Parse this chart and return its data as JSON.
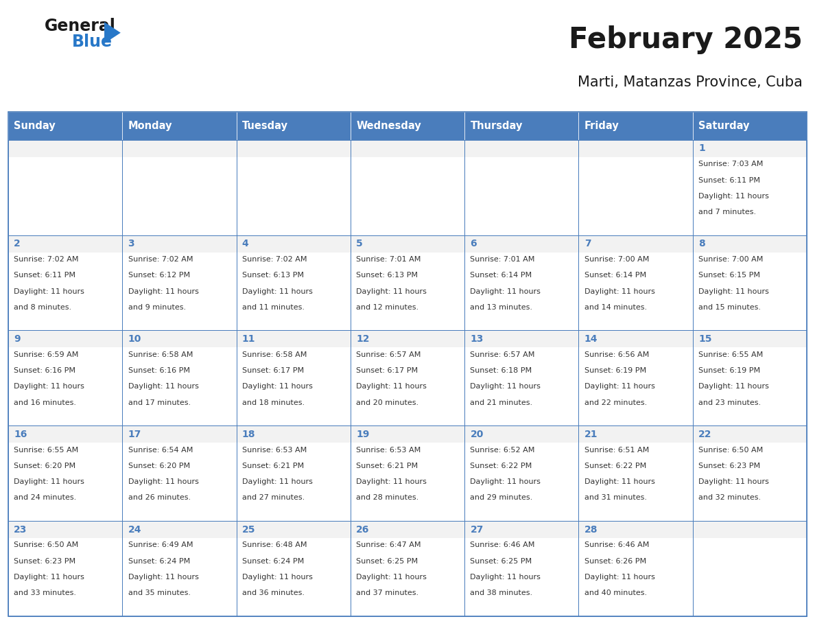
{
  "title": "February 2025",
  "subtitle": "Marti, Matanzas Province, Cuba",
  "days_of_week": [
    "Sunday",
    "Monday",
    "Tuesday",
    "Wednesday",
    "Thursday",
    "Friday",
    "Saturday"
  ],
  "header_bg": "#4a7dbc",
  "header_text": "#ffffff",
  "cell_bg_light": "#f2f2f2",
  "cell_bg_white": "#ffffff",
  "cell_border": "#4a7dbc",
  "day_number_color": "#4a7dbc",
  "info_text_color": "#333333",
  "title_color": "#1a1a1a",
  "logo_general_color": "#1a1a1a",
  "logo_blue_color": "#2878c8",
  "calendar_data": [
    {
      "day": 1,
      "col": 6,
      "row": 0,
      "sunrise": "7:03 AM",
      "sunset": "6:11 PM",
      "daylight": "11 hours and 7 minutes."
    },
    {
      "day": 2,
      "col": 0,
      "row": 1,
      "sunrise": "7:02 AM",
      "sunset": "6:11 PM",
      "daylight": "11 hours and 8 minutes."
    },
    {
      "day": 3,
      "col": 1,
      "row": 1,
      "sunrise": "7:02 AM",
      "sunset": "6:12 PM",
      "daylight": "11 hours and 9 minutes."
    },
    {
      "day": 4,
      "col": 2,
      "row": 1,
      "sunrise": "7:02 AM",
      "sunset": "6:13 PM",
      "daylight": "11 hours and 11 minutes."
    },
    {
      "day": 5,
      "col": 3,
      "row": 1,
      "sunrise": "7:01 AM",
      "sunset": "6:13 PM",
      "daylight": "11 hours and 12 minutes."
    },
    {
      "day": 6,
      "col": 4,
      "row": 1,
      "sunrise": "7:01 AM",
      "sunset": "6:14 PM",
      "daylight": "11 hours and 13 minutes."
    },
    {
      "day": 7,
      "col": 5,
      "row": 1,
      "sunrise": "7:00 AM",
      "sunset": "6:14 PM",
      "daylight": "11 hours and 14 minutes."
    },
    {
      "day": 8,
      "col": 6,
      "row": 1,
      "sunrise": "7:00 AM",
      "sunset": "6:15 PM",
      "daylight": "11 hours and 15 minutes."
    },
    {
      "day": 9,
      "col": 0,
      "row": 2,
      "sunrise": "6:59 AM",
      "sunset": "6:16 PM",
      "daylight": "11 hours and 16 minutes."
    },
    {
      "day": 10,
      "col": 1,
      "row": 2,
      "sunrise": "6:58 AM",
      "sunset": "6:16 PM",
      "daylight": "11 hours and 17 minutes."
    },
    {
      "day": 11,
      "col": 2,
      "row": 2,
      "sunrise": "6:58 AM",
      "sunset": "6:17 PM",
      "daylight": "11 hours and 18 minutes."
    },
    {
      "day": 12,
      "col": 3,
      "row": 2,
      "sunrise": "6:57 AM",
      "sunset": "6:17 PM",
      "daylight": "11 hours and 20 minutes."
    },
    {
      "day": 13,
      "col": 4,
      "row": 2,
      "sunrise": "6:57 AM",
      "sunset": "6:18 PM",
      "daylight": "11 hours and 21 minutes."
    },
    {
      "day": 14,
      "col": 5,
      "row": 2,
      "sunrise": "6:56 AM",
      "sunset": "6:19 PM",
      "daylight": "11 hours and 22 minutes."
    },
    {
      "day": 15,
      "col": 6,
      "row": 2,
      "sunrise": "6:55 AM",
      "sunset": "6:19 PM",
      "daylight": "11 hours and 23 minutes."
    },
    {
      "day": 16,
      "col": 0,
      "row": 3,
      "sunrise": "6:55 AM",
      "sunset": "6:20 PM",
      "daylight": "11 hours and 24 minutes."
    },
    {
      "day": 17,
      "col": 1,
      "row": 3,
      "sunrise": "6:54 AM",
      "sunset": "6:20 PM",
      "daylight": "11 hours and 26 minutes."
    },
    {
      "day": 18,
      "col": 2,
      "row": 3,
      "sunrise": "6:53 AM",
      "sunset": "6:21 PM",
      "daylight": "11 hours and 27 minutes."
    },
    {
      "day": 19,
      "col": 3,
      "row": 3,
      "sunrise": "6:53 AM",
      "sunset": "6:21 PM",
      "daylight": "11 hours and 28 minutes."
    },
    {
      "day": 20,
      "col": 4,
      "row": 3,
      "sunrise": "6:52 AM",
      "sunset": "6:22 PM",
      "daylight": "11 hours and 29 minutes."
    },
    {
      "day": 21,
      "col": 5,
      "row": 3,
      "sunrise": "6:51 AM",
      "sunset": "6:22 PM",
      "daylight": "11 hours and 31 minutes."
    },
    {
      "day": 22,
      "col": 6,
      "row": 3,
      "sunrise": "6:50 AM",
      "sunset": "6:23 PM",
      "daylight": "11 hours and 32 minutes."
    },
    {
      "day": 23,
      "col": 0,
      "row": 4,
      "sunrise": "6:50 AM",
      "sunset": "6:23 PM",
      "daylight": "11 hours and 33 minutes."
    },
    {
      "day": 24,
      "col": 1,
      "row": 4,
      "sunrise": "6:49 AM",
      "sunset": "6:24 PM",
      "daylight": "11 hours and 35 minutes."
    },
    {
      "day": 25,
      "col": 2,
      "row": 4,
      "sunrise": "6:48 AM",
      "sunset": "6:24 PM",
      "daylight": "11 hours and 36 minutes."
    },
    {
      "day": 26,
      "col": 3,
      "row": 4,
      "sunrise": "6:47 AM",
      "sunset": "6:25 PM",
      "daylight": "11 hours and 37 minutes."
    },
    {
      "day": 27,
      "col": 4,
      "row": 4,
      "sunrise": "6:46 AM",
      "sunset": "6:25 PM",
      "daylight": "11 hours and 38 minutes."
    },
    {
      "day": 28,
      "col": 5,
      "row": 4,
      "sunrise": "6:46 AM",
      "sunset": "6:26 PM",
      "daylight": "11 hours and 40 minutes."
    }
  ]
}
